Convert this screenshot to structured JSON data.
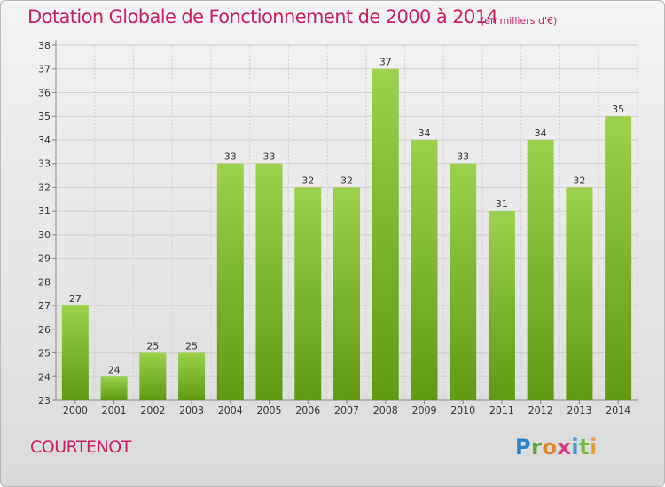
{
  "header": {
    "title": "Dotation Globale de Fonctionnement de 2000 à 2014",
    "unit": "(en milliers d'€)"
  },
  "footer": {
    "commune": "COURTENOT",
    "logo": "Proxiti"
  },
  "colors": {
    "bar_light": "#9bd14b",
    "bar_dark": "#5f9a12",
    "title": "#c81e63",
    "grid": "#cfcfcf"
  },
  "chart_data": {
    "type": "bar",
    "categories": [
      "2000",
      "2001",
      "2002",
      "2003",
      "2004",
      "2005",
      "2006",
      "2007",
      "2008",
      "2009",
      "2010",
      "2011",
      "2012",
      "2013",
      "2014"
    ],
    "values": [
      27,
      24,
      25,
      25,
      33,
      33,
      32,
      32,
      37,
      34,
      33,
      31,
      34,
      32,
      35
    ],
    "title": "Dotation Globale de Fonctionnement de 2000 à 2014",
    "subtitle": "(en milliers d'€)",
    "ylim": [
      23,
      38
    ],
    "yticks": [
      23,
      24,
      25,
      26,
      27,
      28,
      29,
      30,
      31,
      32,
      33,
      34,
      35,
      36,
      37,
      38
    ],
    "grid": true,
    "data_labels": true
  }
}
